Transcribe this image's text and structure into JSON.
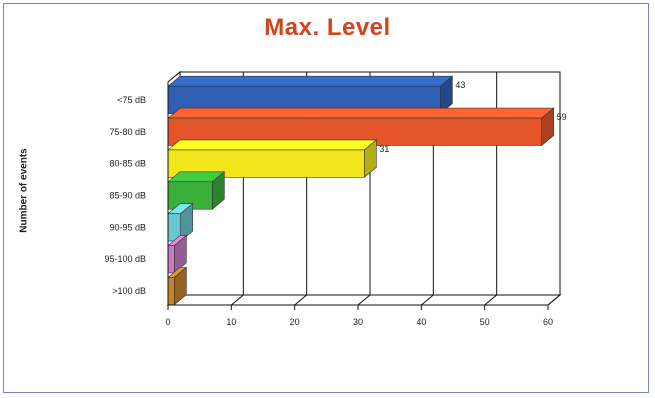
{
  "chart_data": {
    "type": "bar",
    "orientation": "horizontal",
    "title": "Max. Level",
    "ylabel": "Number of events",
    "xlabel": "",
    "categories": [
      "<75 dB",
      "75-80 dB",
      "80-85 dB",
      "85-90 dB",
      "90-95 dB",
      "95-100 dB",
      ">100 dB"
    ],
    "values": [
      43,
      59,
      31,
      7,
      2,
      1,
      1
    ],
    "data_labels": [
      "43",
      "59",
      "31",
      "",
      "",
      "",
      ""
    ],
    "colors": [
      "#2f5fb4",
      "#e4562a",
      "#f2e51a",
      "#3ab03a",
      "#6ac7d0",
      "#c87ac6",
      "#c8822a"
    ],
    "xlim": [
      0,
      60
    ],
    "xticks": [
      "0",
      "10",
      "20",
      "30",
      "40",
      "50",
      "60"
    ],
    "grid": true
  }
}
